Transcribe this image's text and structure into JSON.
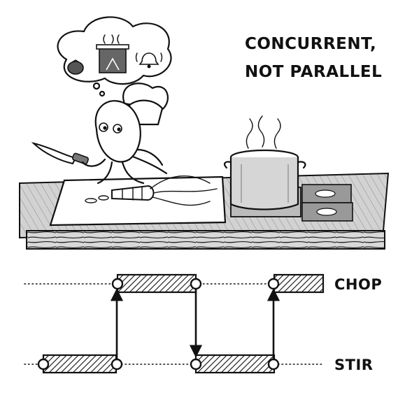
{
  "title": {
    "line1": "CONCURRENT,",
    "line2": "NOT PARALLEL"
  },
  "lanes": {
    "top": "CHOP",
    "bottom": "STIR"
  },
  "illustration": {
    "character": "octopus-chef-icon",
    "thought_items": [
      "tomato-icon",
      "steaming-pot-icon",
      "bell-icon"
    ],
    "props": [
      "knife-icon",
      "cutting-board-icon",
      "carrot-icon",
      "stockpot-icon",
      "stove-icon"
    ]
  },
  "timeline": {
    "segments": [
      {
        "lane": "bottom",
        "order": 1
      },
      {
        "lane": "top",
        "order": 2
      },
      {
        "lane": "bottom",
        "order": 3
      },
      {
        "lane": "top",
        "order": 4
      }
    ],
    "switches": [
      {
        "from": "bottom",
        "to": "top"
      },
      {
        "from": "top",
        "to": "bottom"
      },
      {
        "from": "bottom",
        "to": "top"
      }
    ]
  }
}
